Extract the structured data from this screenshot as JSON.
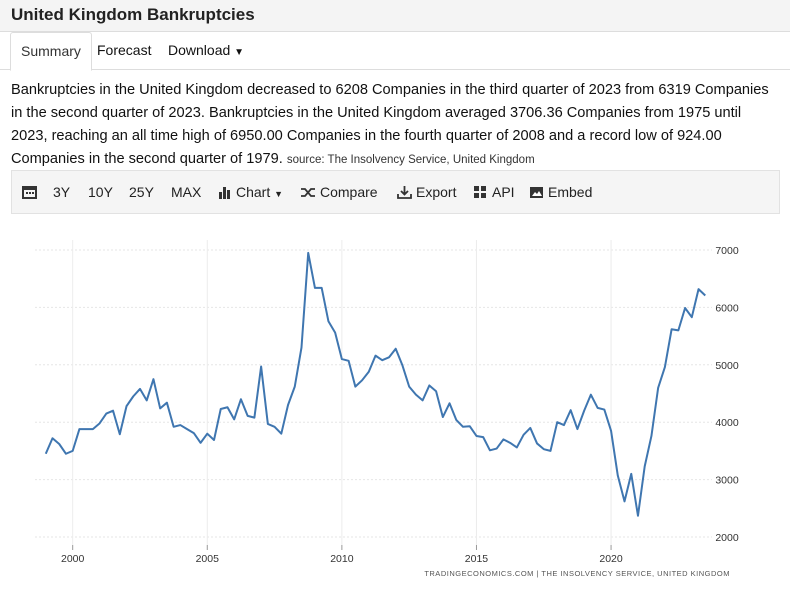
{
  "header": {
    "title": "United Kingdom Bankruptcies"
  },
  "tabs": [
    "Summary",
    "Forecast",
    "Download"
  ],
  "description": "Bankruptcies in the United Kingdom decreased to 6208 Companies in the third quarter of 2023 from 6319 Companies in the second quarter of 2023. Bankruptcies in the United Kingdom averaged 3706.36 Companies from 1975 until 2023, reaching an all time high of 6950.00 Companies in the fourth quarter of 2008 and a record low of 924.00 Companies in the second quarter of 1979.",
  "source": "source: The Insolvency Service, United Kingdom",
  "toolbar": [
    "3Y",
    "10Y",
    "25Y",
    "MAX",
    "Chart",
    "Compare",
    "Export",
    "API",
    "Embed"
  ],
  "chart_data": {
    "type": "line",
    "x": [
      1999,
      1999.25,
      1999.5,
      1999.75,
      2000,
      2000.25,
      2000.5,
      2000.75,
      2001,
      2001.25,
      2001.5,
      2001.75,
      2002,
      2002.25,
      2002.5,
      2002.75,
      2003,
      2003.25,
      2003.5,
      2003.75,
      2004,
      2004.25,
      2004.5,
      2004.75,
      2005,
      2005.25,
      2005.5,
      2005.75,
      2006,
      2006.25,
      2006.5,
      2006.75,
      2007,
      2007.25,
      2007.5,
      2007.75,
      2008,
      2008.25,
      2008.5,
      2008.75,
      2009,
      2009.25,
      2009.5,
      2009.75,
      2010,
      2010.25,
      2010.5,
      2010.75,
      2011,
      2011.25,
      2011.5,
      2011.75,
      2012,
      2012.25,
      2012.5,
      2012.75,
      2013,
      2013.25,
      2013.5,
      2013.75,
      2014,
      2014.25,
      2014.5,
      2014.75,
      2015,
      2015.25,
      2015.5,
      2015.75,
      2016,
      2016.25,
      2016.5,
      2016.75,
      2017,
      2017.25,
      2017.5,
      2017.75,
      2018,
      2018.25,
      2018.5,
      2018.75,
      2019,
      2019.25,
      2019.5,
      2019.75,
      2020,
      2020.25,
      2020.5,
      2020.75,
      2021,
      2021.25,
      2021.5,
      2021.75,
      2022,
      2022.25,
      2022.5,
      2022.75,
      2023,
      2023.25,
      2023.5
    ],
    "values": [
      3450,
      3720,
      3620,
      3450,
      3500,
      3880,
      3880,
      3880,
      3980,
      4150,
      4200,
      3790,
      4280,
      4450,
      4580,
      4380,
      4750,
      4240,
      4340,
      3920,
      3950,
      3880,
      3810,
      3640,
      3800,
      3690,
      4230,
      4260,
      4050,
      4400,
      4110,
      4080,
      4970,
      3970,
      3920,
      3800,
      4300,
      4620,
      5300,
      6950,
      6340,
      6340,
      5760,
      5560,
      5100,
      5070,
      4620,
      4730,
      4880,
      5160,
      5080,
      5130,
      5280,
      4990,
      4620,
      4480,
      4380,
      4640,
      4540,
      4090,
      4330,
      4040,
      3920,
      3930,
      3760,
      3740,
      3510,
      3540,
      3700,
      3640,
      3560,
      3780,
      3900,
      3630,
      3530,
      3500,
      4000,
      3950,
      4210,
      3880,
      4200,
      4480,
      4250,
      4220,
      3850,
      3070,
      2620,
      3100,
      2370,
      3230,
      3760,
      4600,
      4960,
      5620,
      5600,
      5990,
      5830,
      6319,
      6208
    ],
    "color": "#3f76b0",
    "xlim": [
      1998.6,
      2023.75
    ],
    "xticks": [
      2000,
      2005,
      2010,
      2015,
      2020
    ],
    "ylim": [
      1860,
      7175
    ],
    "yticks": [
      2000,
      3000,
      4000,
      5000,
      6000,
      7000
    ],
    "grid": true,
    "credit": "TRADINGECONOMICS.COM | THE INSOLVENCY SERVICE, UNITED KINGDOM"
  }
}
